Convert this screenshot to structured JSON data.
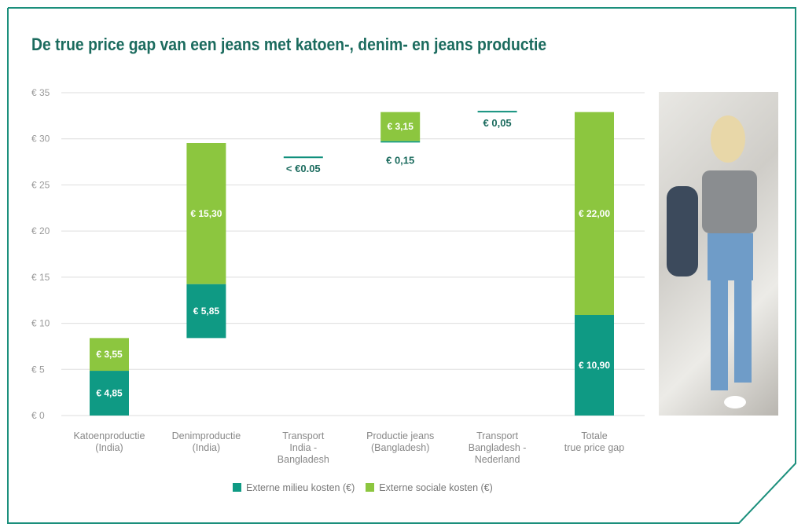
{
  "title": "De true price gap van een jeans met katoen-, denim- en jeans productie",
  "chart_data": {
    "type": "bar",
    "subtype": "waterfall-stacked",
    "title": "De true price gap van een jeans met katoen-, denim- en jeans productie",
    "ylim": [
      0,
      35
    ],
    "yticks": [
      "€ 0",
      "€ 5",
      "€ 10",
      "€ 15",
      "€ 20",
      "€ 25",
      "€ 30",
      "€ 35"
    ],
    "categories": [
      [
        "Katoenproductie",
        "(India)"
      ],
      [
        "Denimproductie",
        "(India)"
      ],
      [
        "Transport",
        "India -",
        "Bangladesh"
      ],
      [
        "Productie jeans",
        "(Bangladesh)"
      ],
      [
        "Transport",
        "Bangladesh -",
        "Nederland"
      ],
      [
        "Totale",
        "true price gap"
      ]
    ],
    "series": [
      {
        "name": "Externe milieu kosten (€)",
        "color": "#0f9a84",
        "values": [
          4.85,
          5.85,
          0,
          0.15,
          0,
          10.9
        ],
        "labels": [
          "€ 4,85",
          "€ 5,85",
          "",
          "€ 0,15",
          "",
          "€ 10,90"
        ]
      },
      {
        "name": "Externe sociale kosten (€)",
        "color": "#8cc63f",
        "values": [
          3.55,
          15.3,
          0,
          3.15,
          0,
          22.0
        ],
        "labels": [
          "€ 3,55",
          "€ 15,30",
          "",
          "€ 3,15",
          "",
          "€ 22,00"
        ]
      }
    ],
    "bases": [
      0,
      8.4,
      29.55,
      29.6,
      32.9,
      0
    ],
    "line_markers": [
      {
        "category": 2,
        "value": 28.0,
        "label": "< €0.05"
      },
      {
        "category": 4,
        "value": 32.95,
        "label": "€ 0,05"
      }
    ],
    "legend": "bottom"
  }
}
